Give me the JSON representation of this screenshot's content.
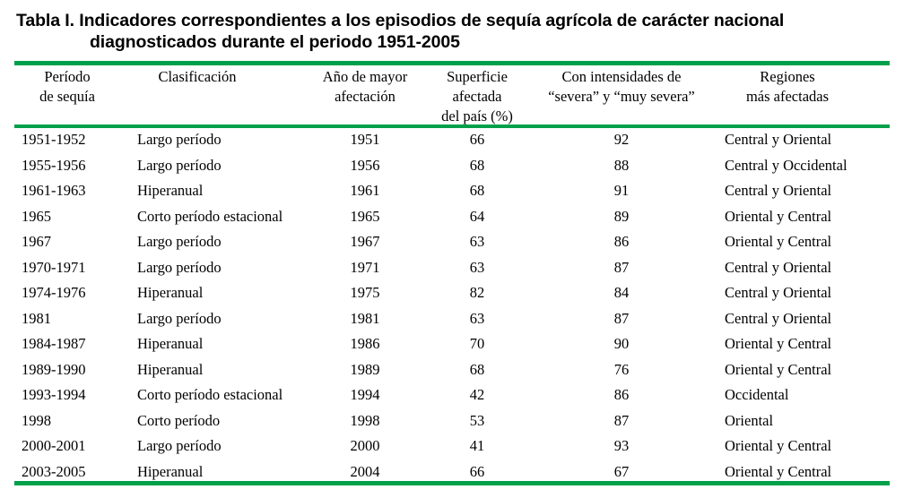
{
  "title": {
    "line1": "Tabla I. Indicadores correspondientes a los episodios de sequía agrícola de carácter nacional",
    "line2": "diagnosticados durante el periodo 1951-2005"
  },
  "headers": [
    [
      "Período",
      "de sequía"
    ],
    [
      "Clasificación"
    ],
    [
      "Año de mayor",
      "afectación"
    ],
    [
      "Superficie",
      "afectada",
      "del país (%)"
    ],
    [
      "Con intensidades de",
      "“severa” y “muy severa”"
    ],
    [
      "Regiones",
      "más afectadas"
    ]
  ],
  "rows": [
    [
      "1951-1952",
      "Largo período",
      "1951",
      "66",
      "92",
      "Central y Oriental"
    ],
    [
      "1955-1956",
      "Largo período",
      "1956",
      "68",
      "88",
      "Central y Occidental"
    ],
    [
      "1961-1963",
      "Hiperanual",
      "1961",
      "68",
      "91",
      "Central y Oriental"
    ],
    [
      "1965",
      "Corto período estacional",
      "1965",
      "64",
      "89",
      "Oriental y Central"
    ],
    [
      "1967",
      "Largo período",
      "1967",
      "63",
      "86",
      "Oriental y Central"
    ],
    [
      "1970-1971",
      "Largo período",
      "1971",
      "63",
      "87",
      "Central y Oriental"
    ],
    [
      "1974-1976",
      "Hiperanual",
      "1975",
      "82",
      "84",
      "Central y Oriental"
    ],
    [
      "1981",
      "Largo período",
      "1981",
      "63",
      "87",
      "Central y Oriental"
    ],
    [
      "1984-1987",
      "Hiperanual",
      "1986",
      "70",
      "90",
      "Oriental y Central"
    ],
    [
      "1989-1990",
      "Hiperanual",
      "1989",
      "68",
      "76",
      "Oriental y Central"
    ],
    [
      "1993-1994",
      "Corto período estacional",
      "1994",
      "42",
      "86",
      "Occidental"
    ],
    [
      "1998",
      "Corto período",
      "1998",
      "53",
      "87",
      "Oriental"
    ],
    [
      "2000-2001",
      "Largo período",
      "2000",
      "41",
      "93",
      "Oriental y Central"
    ],
    [
      "2003-2005",
      "Hiperanual",
      "2004",
      "66",
      "67",
      "Oriental y Central"
    ]
  ],
  "colors": {
    "rule": "#00a04a"
  }
}
